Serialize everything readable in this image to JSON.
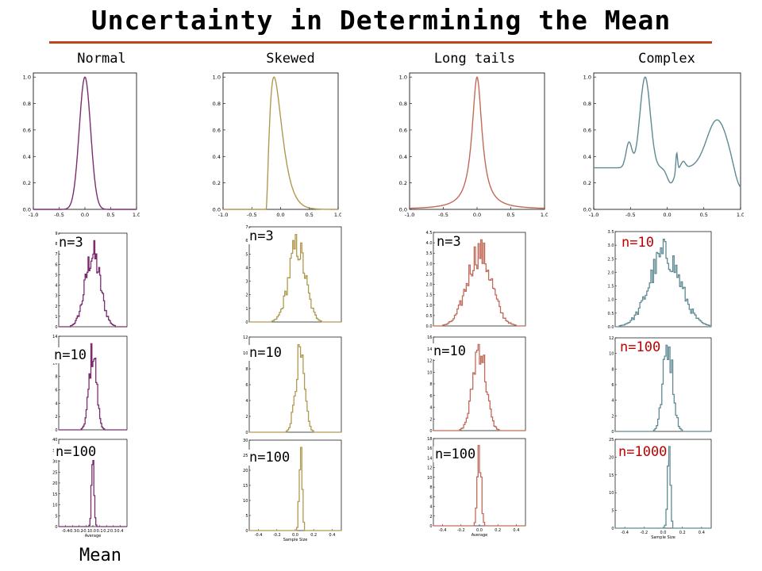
{
  "title": "Uncertainty in Determining the Mean",
  "footer_label": "Mean",
  "colors": {
    "rule": "#c0451a",
    "sample_label_red": "#c00000",
    "axes": "#000000"
  },
  "columns": [
    {
      "label": "Normal",
      "color": "#7b2d6e"
    },
    {
      "label": "Skewed",
      "color": "#b09a50"
    },
    {
      "label": "Long tails",
      "color": "#c06a5a"
    },
    {
      "label": "Complex",
      "color": "#5f8a94"
    }
  ],
  "chart_data": [
    {
      "type": "line",
      "column": "Normal",
      "xlim": [
        -1.0,
        1.0
      ],
      "ylim": [
        0,
        1.0
      ],
      "xticks": [
        "-1.0",
        "-0.5",
        "0.0",
        "0.5",
        "1.0"
      ],
      "yticks": [
        "0.0",
        "0.2",
        "0.4",
        "0.6",
        "0.8",
        "1.0"
      ],
      "distribution": "normal",
      "peak_x": 0.0,
      "peak_y": 1.0
    },
    {
      "type": "line",
      "column": "Skewed",
      "xlim": [
        -1.0,
        1.0
      ],
      "ylim": [
        0,
        1.0
      ],
      "xticks": [
        "-1.0",
        "-0.5",
        "0.0",
        "0.5",
        "1.0"
      ],
      "yticks": [
        "0.0",
        "0.2",
        "0.4",
        "0.6",
        "0.8",
        "1.0"
      ],
      "distribution": "skewed",
      "peak_x": -0.05,
      "peak_y": 1.0
    },
    {
      "type": "line",
      "column": "Long tails",
      "xlim": [
        -1.0,
        1.0
      ],
      "ylim": [
        0,
        1.0
      ],
      "xticks": [
        "-1.0",
        "-0.5",
        "0.0",
        "0.5",
        "1.0"
      ],
      "yticks": [
        "0.0",
        "0.2",
        "0.4",
        "0.6",
        "0.8",
        "1.0"
      ],
      "distribution": "long-tailed",
      "peak_x": 0.0,
      "peak_y": 1.0
    },
    {
      "type": "line",
      "column": "Complex",
      "xlim": [
        -1.0,
        1.0
      ],
      "ylim": [
        0,
        1.0
      ],
      "xticks": [
        "-1.0",
        "-0.5",
        "0.0",
        "0.5",
        "1.0"
      ],
      "yticks": [
        "0.0",
        "0.2",
        "0.4",
        "0.6",
        "0.8",
        "1.0"
      ],
      "distribution": "multimodal",
      "peak_x": -0.3,
      "peak_y": 1.0
    }
  ],
  "histograms": [
    {
      "column": "Normal",
      "label": "n=3",
      "red": false,
      "xlim": [
        -0.5,
        0.5
      ],
      "sd": 0.11,
      "mean": 0.0,
      "yticks": [
        "0",
        "1",
        "2",
        "3",
        "4",
        "5",
        "6",
        "7",
        "8",
        "9"
      ],
      "ymax": 9,
      "xlabel": ""
    },
    {
      "column": "Normal",
      "label": "n=10",
      "red": false,
      "xlim": [
        -0.5,
        0.5
      ],
      "sd": 0.055,
      "mean": 0.0,
      "yticks": [
        "0",
        "2",
        "4",
        "6",
        "8",
        "10",
        "12",
        "14"
      ],
      "ymax": 14,
      "xlabel": ""
    },
    {
      "column": "Normal",
      "label": "n=100",
      "red": false,
      "xlim": [
        -0.5,
        0.5
      ],
      "sd": 0.018,
      "mean": 0.0,
      "yticks": [
        "0",
        "5",
        "10",
        "15",
        "20",
        "25",
        "30",
        "35",
        "40"
      ],
      "ymax": 40,
      "xticks": [
        "-0.4",
        "-0.3",
        "-0.2",
        "-0.1",
        "0.0",
        "0.1",
        "0.2",
        "0.3",
        "0.4"
      ],
      "xlabel": "Average"
    },
    {
      "column": "Skewed",
      "label": "n=3",
      "red": false,
      "xlim": [
        -0.5,
        0.5
      ],
      "sd": 0.09,
      "mean": 0.02,
      "yticks": [
        "0",
        "1",
        "2",
        "3",
        "4",
        "5",
        "6",
        "7"
      ],
      "ymax": 7,
      "xlabel": ""
    },
    {
      "column": "Skewed",
      "label": "n=10",
      "red": false,
      "xlim": [
        -0.5,
        0.5
      ],
      "sd": 0.05,
      "mean": 0.05,
      "yticks": [
        "0",
        "2",
        "4",
        "6",
        "8",
        "10",
        "12"
      ],
      "ymax": 12,
      "xlabel": ""
    },
    {
      "column": "Skewed",
      "label": "n=100",
      "red": false,
      "xlim": [
        -0.5,
        0.5
      ],
      "sd": 0.015,
      "mean": 0.06,
      "yticks": [
        "0",
        "5",
        "10",
        "15",
        "20",
        "25",
        "30"
      ],
      "ymax": 30,
      "xticks": [
        "-0.4",
        "-0.2",
        "0.0",
        "0.2",
        "0.4"
      ],
      "xlabel": "Sample Size"
    },
    {
      "column": "Long tails",
      "label": "n=3",
      "red": false,
      "xlim": [
        -0.5,
        0.5
      ],
      "sd": 0.13,
      "mean": 0.0,
      "yticks": [
        "0.0",
        "0.5",
        "1.0",
        "1.5",
        "2.0",
        "2.5",
        "3.0",
        "3.5",
        "4.0",
        "4.5"
      ],
      "ymax": 4.5,
      "xlabel": ""
    },
    {
      "column": "Long tails",
      "label": "n=10",
      "red": false,
      "xlim": [
        -0.5,
        0.5
      ],
      "sd": 0.07,
      "mean": 0.0,
      "yticks": [
        "0",
        "2",
        "4",
        "6",
        "8",
        "10",
        "12",
        "14",
        "16"
      ],
      "ymax": 16,
      "xlabel": ""
    },
    {
      "column": "Long tails",
      "label": "n=100",
      "red": false,
      "xlim": [
        -0.5,
        0.5
      ],
      "sd": 0.02,
      "mean": 0.0,
      "yticks": [
        "0",
        "2",
        "4",
        "6",
        "8",
        "10",
        "12",
        "14",
        "16",
        "18"
      ],
      "ymax": 18,
      "xticks": [
        "-0.4",
        "-0.2",
        "0.0",
        "0.2",
        "0.4"
      ],
      "xlabel": "Average"
    },
    {
      "column": "Complex",
      "label": "n=10",
      "red": true,
      "xlim": [
        -0.5,
        0.5
      ],
      "sd": 0.16,
      "mean": 0.02,
      "yticks": [
        "0.0",
        "0.5",
        "1.0",
        "1.5",
        "2.0",
        "2.5",
        "3.0",
        "3.5"
      ],
      "ymax": 3.5,
      "xlabel": ""
    },
    {
      "column": "Complex",
      "label": "n=100",
      "red": true,
      "xlim": [
        -0.5,
        0.5
      ],
      "sd": 0.05,
      "mean": 0.05,
      "yticks": [
        "0",
        "2",
        "4",
        "6",
        "8",
        "10",
        "12"
      ],
      "ymax": 12,
      "xlabel": ""
    },
    {
      "column": "Complex",
      "label": "n=1000",
      "red": true,
      "xlim": [
        -0.5,
        0.5
      ],
      "sd": 0.015,
      "mean": 0.06,
      "yticks": [
        "0",
        "5",
        "10",
        "15",
        "20",
        "25"
      ],
      "ymax": 25,
      "xticks": [
        "-0.4",
        "-0.2",
        "0.0",
        "0.2",
        "0.4"
      ],
      "xlabel": "Sample Size"
    }
  ]
}
